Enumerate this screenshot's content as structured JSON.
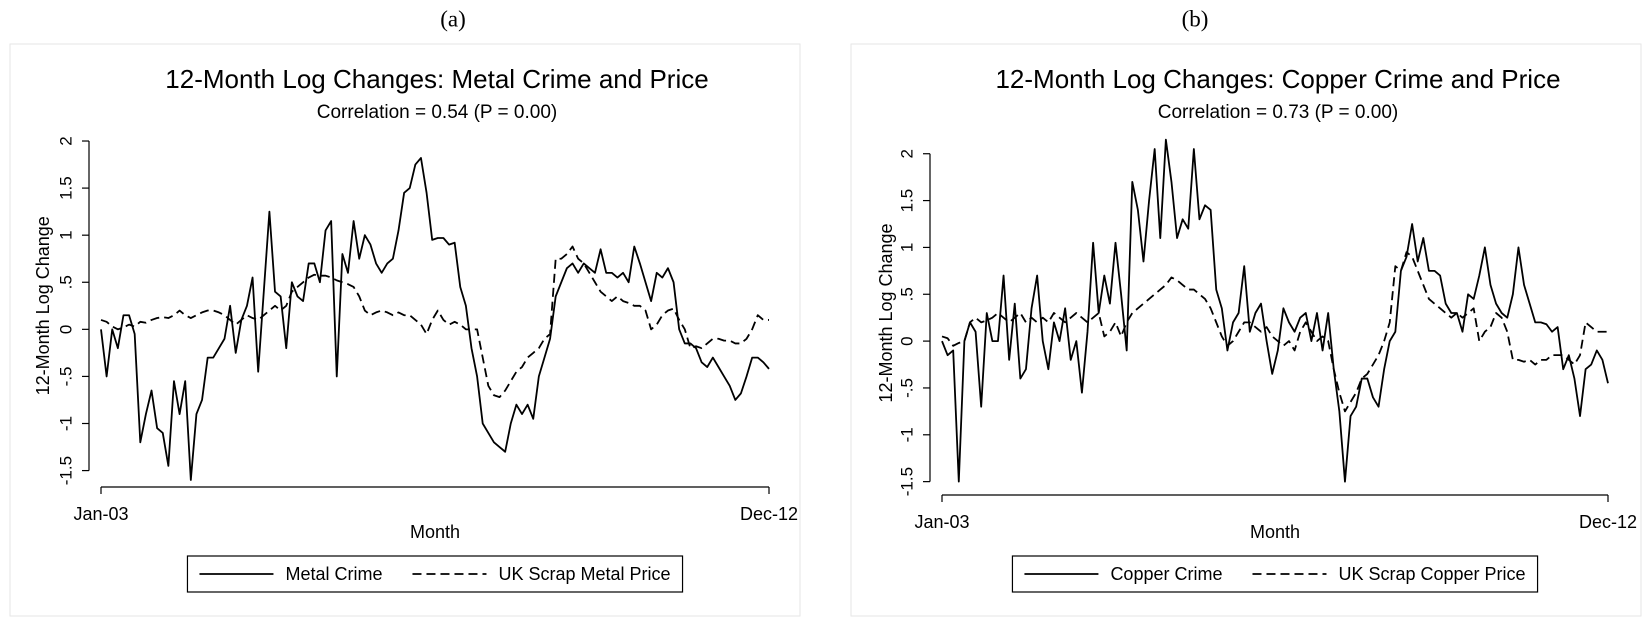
{
  "chart_data": [
    {
      "type": "line",
      "panel_label": "(a)",
      "title": "12-Month Log Changes: Metal Crime and Price",
      "subtitle": "Correlation = 0.54 (P = 0.00)",
      "xlabel": "Month",
      "ylabel": "12-Month Log Change",
      "categories": [
        "Jan-03",
        null,
        null,
        null,
        null,
        null,
        null,
        null,
        null,
        null,
        null,
        null,
        null,
        null,
        null,
        null,
        null,
        null,
        null,
        null,
        null,
        null,
        null,
        null,
        null,
        null,
        null,
        null,
        null,
        null,
        null,
        null,
        null,
        null,
        null,
        null,
        null,
        null,
        null,
        null,
        null,
        null,
        null,
        null,
        null,
        null,
        null,
        null,
        null,
        null,
        null,
        null,
        null,
        null,
        null,
        null,
        null,
        null,
        null,
        null,
        null,
        null,
        null,
        null,
        null,
        null,
        null,
        null,
        null,
        null,
        null,
        null,
        null,
        null,
        null,
        null,
        null,
        null,
        null,
        null,
        null,
        null,
        null,
        null,
        null,
        null,
        null,
        null,
        null,
        null,
        null,
        null,
        null,
        null,
        null,
        null,
        null,
        null,
        null,
        null,
        null,
        null,
        null,
        null,
        null,
        null,
        null,
        null,
        null,
        null,
        null,
        null,
        null,
        null,
        null,
        null,
        null,
        null,
        null,
        "Dec-12"
      ],
      "ylim": [
        -1.6,
        2.1
      ],
      "yticks": [
        {
          "value": -1.5,
          "label": "-1.5"
        },
        -1,
        {
          "value": -0.5,
          "label": "-.5"
        },
        0,
        {
          "value": 0.5,
          "label": ".5"
        },
        1,
        1.5,
        2
      ],
      "series": [
        {
          "name": "Metal Crime",
          "color": "#000000",
          "dash": "solid",
          "values": [
            0,
            -0.5,
            0,
            -0.2,
            0.15,
            0.15,
            -0.05,
            -1.2,
            -0.9,
            -0.65,
            -1.05,
            -1.1,
            -1.45,
            -0.55,
            -0.9,
            -0.55,
            -1.6,
            -0.9,
            -0.75,
            -0.3,
            -0.3,
            -0.2,
            -0.1,
            0.25,
            -0.25,
            0.1,
            0.25,
            0.55,
            -0.45,
            0.4,
            1.25,
            0.4,
            0.35,
            -0.2,
            0.5,
            0.35,
            0.3,
            0.7,
            0.7,
            0.5,
            1.05,
            1.15,
            -0.5,
            0.8,
            0.6,
            1.15,
            0.75,
            1.0,
            0.9,
            0.7,
            0.6,
            0.7,
            0.75,
            1.05,
            1.45,
            1.5,
            1.75,
            1.82,
            1.45,
            0.95,
            0.97,
            0.97,
            0.9,
            0.92,
            0.45,
            0.25,
            -0.2,
            -0.5,
            -1.0,
            -1.1,
            -1.2,
            -1.25,
            -1.3,
            -1.0,
            -0.8,
            -0.9,
            -0.8,
            -0.95,
            -0.5,
            -0.3,
            -0.1,
            0.35,
            0.5,
            0.65,
            0.7,
            0.6,
            0.7,
            0.65,
            0.6,
            0.85,
            0.6,
            0.6,
            0.55,
            0.6,
            0.5,
            0.88,
            0.7,
            0.5,
            0.3,
            0.6,
            0.55,
            0.65,
            0.5,
            0.0,
            -0.15,
            -0.15,
            -0.2,
            -0.35,
            -0.4,
            -0.3,
            -0.4,
            -0.5,
            -0.6,
            -0.75,
            -0.68,
            -0.5,
            -0.3,
            -0.3,
            -0.35,
            -0.42
          ]
        },
        {
          "name": "UK Scrap Metal Price",
          "color": "#000000",
          "dash": "dashed",
          "values": [
            0.1,
            0.08,
            0.03,
            0.0,
            0.02,
            0.05,
            0.03,
            0.08,
            0.07,
            0.1,
            0.12,
            0.13,
            0.12,
            0.15,
            0.2,
            0.15,
            0.12,
            0.15,
            0.18,
            0.2,
            0.2,
            0.18,
            0.15,
            0.1,
            0.05,
            0.1,
            0.15,
            0.12,
            0.1,
            0.15,
            0.2,
            0.25,
            0.2,
            0.25,
            0.4,
            0.45,
            0.5,
            0.55,
            0.58,
            0.57,
            0.57,
            0.55,
            0.52,
            0.5,
            0.48,
            0.45,
            0.35,
            0.2,
            0.15,
            0.18,
            0.2,
            0.18,
            0.15,
            0.18,
            0.15,
            0.15,
            0.1,
            0.05,
            -0.05,
            0.1,
            0.2,
            0.1,
            0.05,
            0.08,
            0.05,
            0.0,
            0.0,
            0.0,
            -0.3,
            -0.6,
            -0.7,
            -0.72,
            -0.65,
            -0.55,
            -0.45,
            -0.4,
            -0.3,
            -0.25,
            -0.2,
            -0.1,
            -0.05,
            0.75,
            0.75,
            0.8,
            0.88,
            0.75,
            0.7,
            0.6,
            0.5,
            0.4,
            0.35,
            0.3,
            0.35,
            0.3,
            0.28,
            0.25,
            0.25,
            0.2,
            0.0,
            0.05,
            0.15,
            0.2,
            0.22,
            0.1,
            0.0,
            -0.2,
            -0.18,
            -0.2,
            -0.15,
            -0.1,
            -0.1,
            -0.12,
            -0.12,
            -0.15,
            -0.15,
            -0.1,
            0.0,
            0.15,
            0.1,
            0.1
          ]
        }
      ]
    },
    {
      "type": "line",
      "panel_label": "(b)",
      "title": "12-Month Log Changes: Copper Crime and Price",
      "subtitle": "Correlation = 0.73 (P = 0.00)",
      "xlabel": "Month",
      "ylabel": "12-Month Log Change",
      "categories": [
        "Jan-03",
        null,
        null,
        null,
        null,
        null,
        null,
        null,
        null,
        null,
        null,
        null,
        null,
        null,
        null,
        null,
        null,
        null,
        null,
        null,
        null,
        null,
        null,
        null,
        null,
        null,
        null,
        null,
        null,
        null,
        null,
        null,
        null,
        null,
        null,
        null,
        null,
        null,
        null,
        null,
        null,
        null,
        null,
        null,
        null,
        null,
        null,
        null,
        null,
        null,
        null,
        null,
        null,
        null,
        null,
        null,
        null,
        null,
        null,
        null,
        null,
        null,
        null,
        null,
        null,
        null,
        null,
        null,
        null,
        null,
        null,
        null,
        null,
        null,
        null,
        null,
        null,
        null,
        null,
        null,
        null,
        null,
        null,
        null,
        null,
        null,
        null,
        null,
        null,
        null,
        null,
        null,
        null,
        null,
        null,
        null,
        null,
        null,
        null,
        null,
        null,
        null,
        null,
        null,
        null,
        null,
        null,
        null,
        null,
        null,
        null,
        null,
        null,
        null,
        null,
        null,
        null,
        null,
        null,
        "Dec-12"
      ],
      "ylim": [
        -1.6,
        2.2
      ],
      "yticks": [
        {
          "value": -1.5,
          "label": "-1.5"
        },
        -1,
        {
          "value": -0.5,
          "label": "-.5"
        },
        0,
        {
          "value": 0.5,
          "label": ".5"
        },
        1,
        1.5,
        2
      ],
      "series": [
        {
          "name": "Copper Crime",
          "color": "#000000",
          "dash": "solid",
          "values": [
            0,
            -0.15,
            -0.1,
            -1.5,
            0.0,
            0.2,
            0.1,
            -0.7,
            0.3,
            0.0,
            0.0,
            0.7,
            -0.2,
            0.4,
            -0.4,
            -0.3,
            0.35,
            0.7,
            0.0,
            -0.3,
            0.2,
            0.0,
            0.35,
            -0.2,
            0.0,
            -0.55,
            0.1,
            1.05,
            0.3,
            0.7,
            0.4,
            1.05,
            0.5,
            -0.1,
            1.7,
            1.4,
            0.85,
            1.5,
            2.05,
            1.1,
            2.15,
            1.7,
            1.1,
            1.3,
            1.2,
            2.05,
            1.3,
            1.45,
            1.4,
            0.55,
            0.35,
            -0.1,
            0.2,
            0.3,
            0.8,
            0.1,
            0.3,
            0.4,
            0.0,
            -0.35,
            -0.1,
            0.35,
            0.2,
            0.1,
            0.25,
            0.3,
            0.0,
            0.3,
            -0.1,
            0.3,
            -0.3,
            -0.75,
            -1.5,
            -0.8,
            -0.7,
            -0.4,
            -0.4,
            -0.6,
            -0.7,
            -0.3,
            0.0,
            0.1,
            0.75,
            0.9,
            1.25,
            0.85,
            1.1,
            0.75,
            0.75,
            0.7,
            0.4,
            0.3,
            0.3,
            0.1,
            0.5,
            0.45,
            0.7,
            1.0,
            0.6,
            0.4,
            0.3,
            0.25,
            0.5,
            1.0,
            0.6,
            0.4,
            0.2,
            0.2,
            0.18,
            0.1,
            0.15,
            -0.3,
            -0.15,
            -0.4,
            -0.8,
            -0.3,
            -0.25,
            -0.1,
            -0.2,
            -0.45
          ]
        },
        {
          "name": "UK Scrap Copper Price",
          "color": "#000000",
          "dash": "dashed",
          "values": [
            0.05,
            0.03,
            -0.05,
            -0.02,
            0.0,
            0.2,
            0.25,
            0.2,
            0.22,
            0.25,
            0.3,
            0.25,
            0.2,
            0.25,
            0.3,
            0.2,
            0.25,
            0.2,
            0.25,
            0.2,
            0.3,
            0.25,
            0.2,
            0.25,
            0.3,
            0.25,
            0.2,
            0.25,
            0.3,
            0.05,
            0.1,
            0.2,
            0.05,
            0.2,
            0.3,
            0.35,
            0.4,
            0.45,
            0.5,
            0.55,
            0.6,
            0.68,
            0.65,
            0.6,
            0.55,
            0.55,
            0.5,
            0.45,
            0.35,
            0.2,
            0.05,
            -0.05,
            0.0,
            0.1,
            0.2,
            0.2,
            0.15,
            0.1,
            0.15,
            0.05,
            0.0,
            -0.05,
            0.0,
            -0.1,
            0.1,
            0.2,
            0.1,
            0.0,
            0.05,
            0.0,
            -0.3,
            -0.55,
            -0.75,
            -0.65,
            -0.55,
            -0.4,
            -0.35,
            -0.25,
            -0.15,
            0.0,
            0.2,
            0.8,
            0.75,
            0.95,
            0.9,
            0.75,
            0.6,
            0.45,
            0.4,
            0.35,
            0.3,
            0.25,
            0.3,
            0.25,
            0.3,
            0.35,
            0.0,
            0.1,
            0.15,
            0.3,
            0.25,
            0.1,
            -0.2,
            -0.2,
            -0.22,
            -0.2,
            -0.25,
            -0.2,
            -0.2,
            -0.15,
            -0.15,
            -0.15,
            -0.2,
            -0.25,
            -0.15,
            0.2,
            0.15,
            0.1,
            0.1,
            0.1
          ]
        }
      ]
    }
  ]
}
